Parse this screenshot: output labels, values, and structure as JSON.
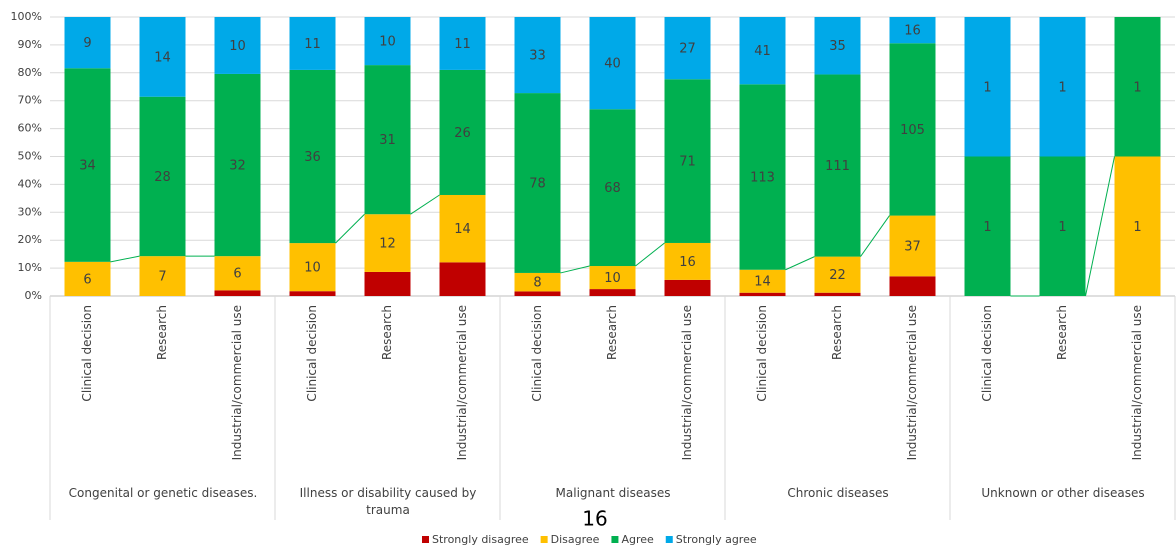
{
  "chart_data": {
    "type": "stacked_percent_bar",
    "categories": [
      "Clinical decision",
      "Research",
      "Industrial/commercial use",
      "Clinical decision",
      "Research",
      "Industrial/commercial use",
      "Clinical decision",
      "Research",
      "Industrial/commercial use",
      "Clinical decision",
      "Research",
      "Industrial/commercial use",
      "Clinical decision",
      "Research",
      "Industrial/commercial use"
    ],
    "groups": [
      "Congenital or genetic diseases.",
      "Illness or disability caused by trauma",
      "Malignant diseases",
      "Chronic diseases",
      "Unknown or other diseases"
    ],
    "series": [
      {
        "name": "Strongly disagree",
        "color": "#c00000",
        "show_labels": false,
        "values": [
          0,
          0,
          1,
          1,
          5,
          7,
          2,
          3,
          7,
          2,
          2,
          12,
          0,
          0,
          0
        ]
      },
      {
        "name": "Disagree",
        "color": "#ffc000",
        "show_labels": true,
        "values": [
          6,
          7,
          6,
          10,
          12,
          14,
          8,
          10,
          16,
          14,
          22,
          37,
          0,
          0,
          1
        ]
      },
      {
        "name": "Agree",
        "color": "#00b050",
        "show_labels": true,
        "values": [
          34,
          28,
          32,
          36,
          31,
          26,
          78,
          68,
          71,
          113,
          111,
          105,
          1,
          1,
          1
        ]
      },
      {
        "name": "Strongly agree",
        "color": "#00a9e8",
        "show_labels": true,
        "values": [
          9,
          14,
          10,
          11,
          10,
          11,
          33,
          40,
          27,
          41,
          35,
          16,
          1,
          1,
          0
        ]
      }
    ],
    "series_lines": true,
    "series_line_color": "#00b050",
    "ylim": [
      0,
      100
    ],
    "yticks": [
      {
        "value": 0,
        "label": "0%"
      },
      {
        "value": 10,
        "label": "10%"
      },
      {
        "value": 20,
        "label": "20%"
      },
      {
        "value": 30,
        "label": "30%"
      },
      {
        "value": 40,
        "label": "40%"
      },
      {
        "value": 50,
        "label": "50%"
      },
      {
        "value": 60,
        "label": "60%"
      },
      {
        "value": 70,
        "label": "70%"
      },
      {
        "value": 80,
        "label": "80%"
      },
      {
        "value": 90,
        "label": "90%"
      },
      {
        "value": 100,
        "label": "100%"
      }
    ],
    "legend": "bottom"
  },
  "page_number": "16"
}
